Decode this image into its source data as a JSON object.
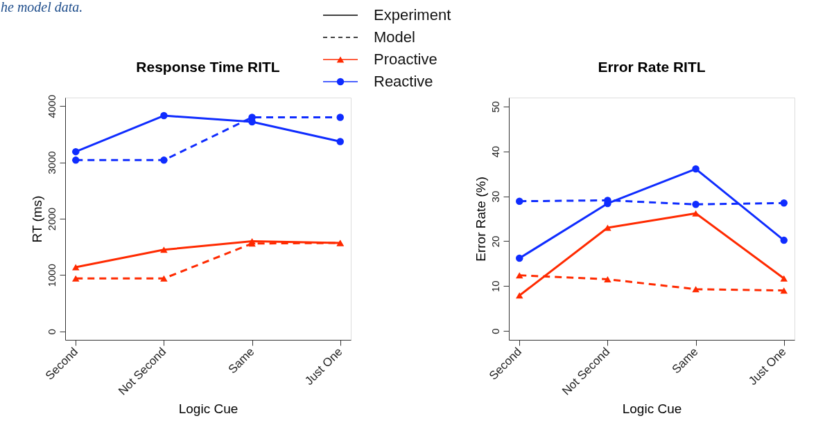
{
  "chart_data": [
    {
      "type": "line",
      "title": "Response Time RITL",
      "xlabel": "Logic Cue",
      "ylabel": "RT (ms)",
      "categories": [
        "Second",
        "Not Second",
        "Same",
        "Just One"
      ],
      "ylim": [
        -150,
        4150
      ],
      "yticks": [
        0,
        1000,
        2000,
        3000,
        4000
      ],
      "grid": false,
      "legend": "top right",
      "annotations": [
        "he model data.",
        "Experiment",
        "Model"
      ],
      "series": [
        {
          "name": "Proactive",
          "color": "#ff2a00",
          "line_style": "solid",
          "marker": "triangle",
          "values": [
            1140,
            1450,
            1600,
            1570
          ]
        },
        {
          "color": "#ff2a00",
          "line_style": "dashed",
          "marker": "triangle",
          "values": [
            940,
            940,
            1560,
            1570
          ]
        },
        {
          "name": "Reactive",
          "color": "#0f2cff",
          "line_style": "solid",
          "marker": "circle",
          "values": [
            3190,
            3830,
            3720,
            3370
          ]
        },
        {
          "color": "#0f2cff",
          "line_style": "dashed",
          "marker": "circle",
          "values": [
            3040,
            3040,
            3800,
            3800
          ]
        }
      ]
    },
    {
      "type": "line",
      "title": "Error Rate RITL",
      "xlabel": "Logic Cue",
      "ylabel": "Error Rate (%)",
      "categories": [
        "Second",
        "Not Second",
        "Same",
        "Just One"
      ],
      "ylim": [
        -2,
        52
      ],
      "yticks": [
        0,
        10,
        20,
        30,
        40,
        50
      ],
      "grid": false,
      "series": [
        {
          "color": "#ff2a00",
          "line_style": "solid",
          "marker": "triangle",
          "values": [
            7.9,
            23.0,
            26.2,
            11.7
          ]
        },
        {
          "color": "#ff2a00",
          "line_style": "dashed",
          "marker": "triangle",
          "values": [
            12.4,
            11.5,
            9.3,
            9.0
          ]
        },
        {
          "color": "#0f2cff",
          "line_style": "solid",
          "marker": "circle",
          "values": [
            16.2,
            28.4,
            36.1,
            20.2
          ]
        },
        {
          "color": "#0f2cff",
          "line_style": "dashed",
          "marker": "circle",
          "values": [
            28.9,
            29.1,
            28.2,
            28.5
          ]
        }
      ]
    }
  ]
}
